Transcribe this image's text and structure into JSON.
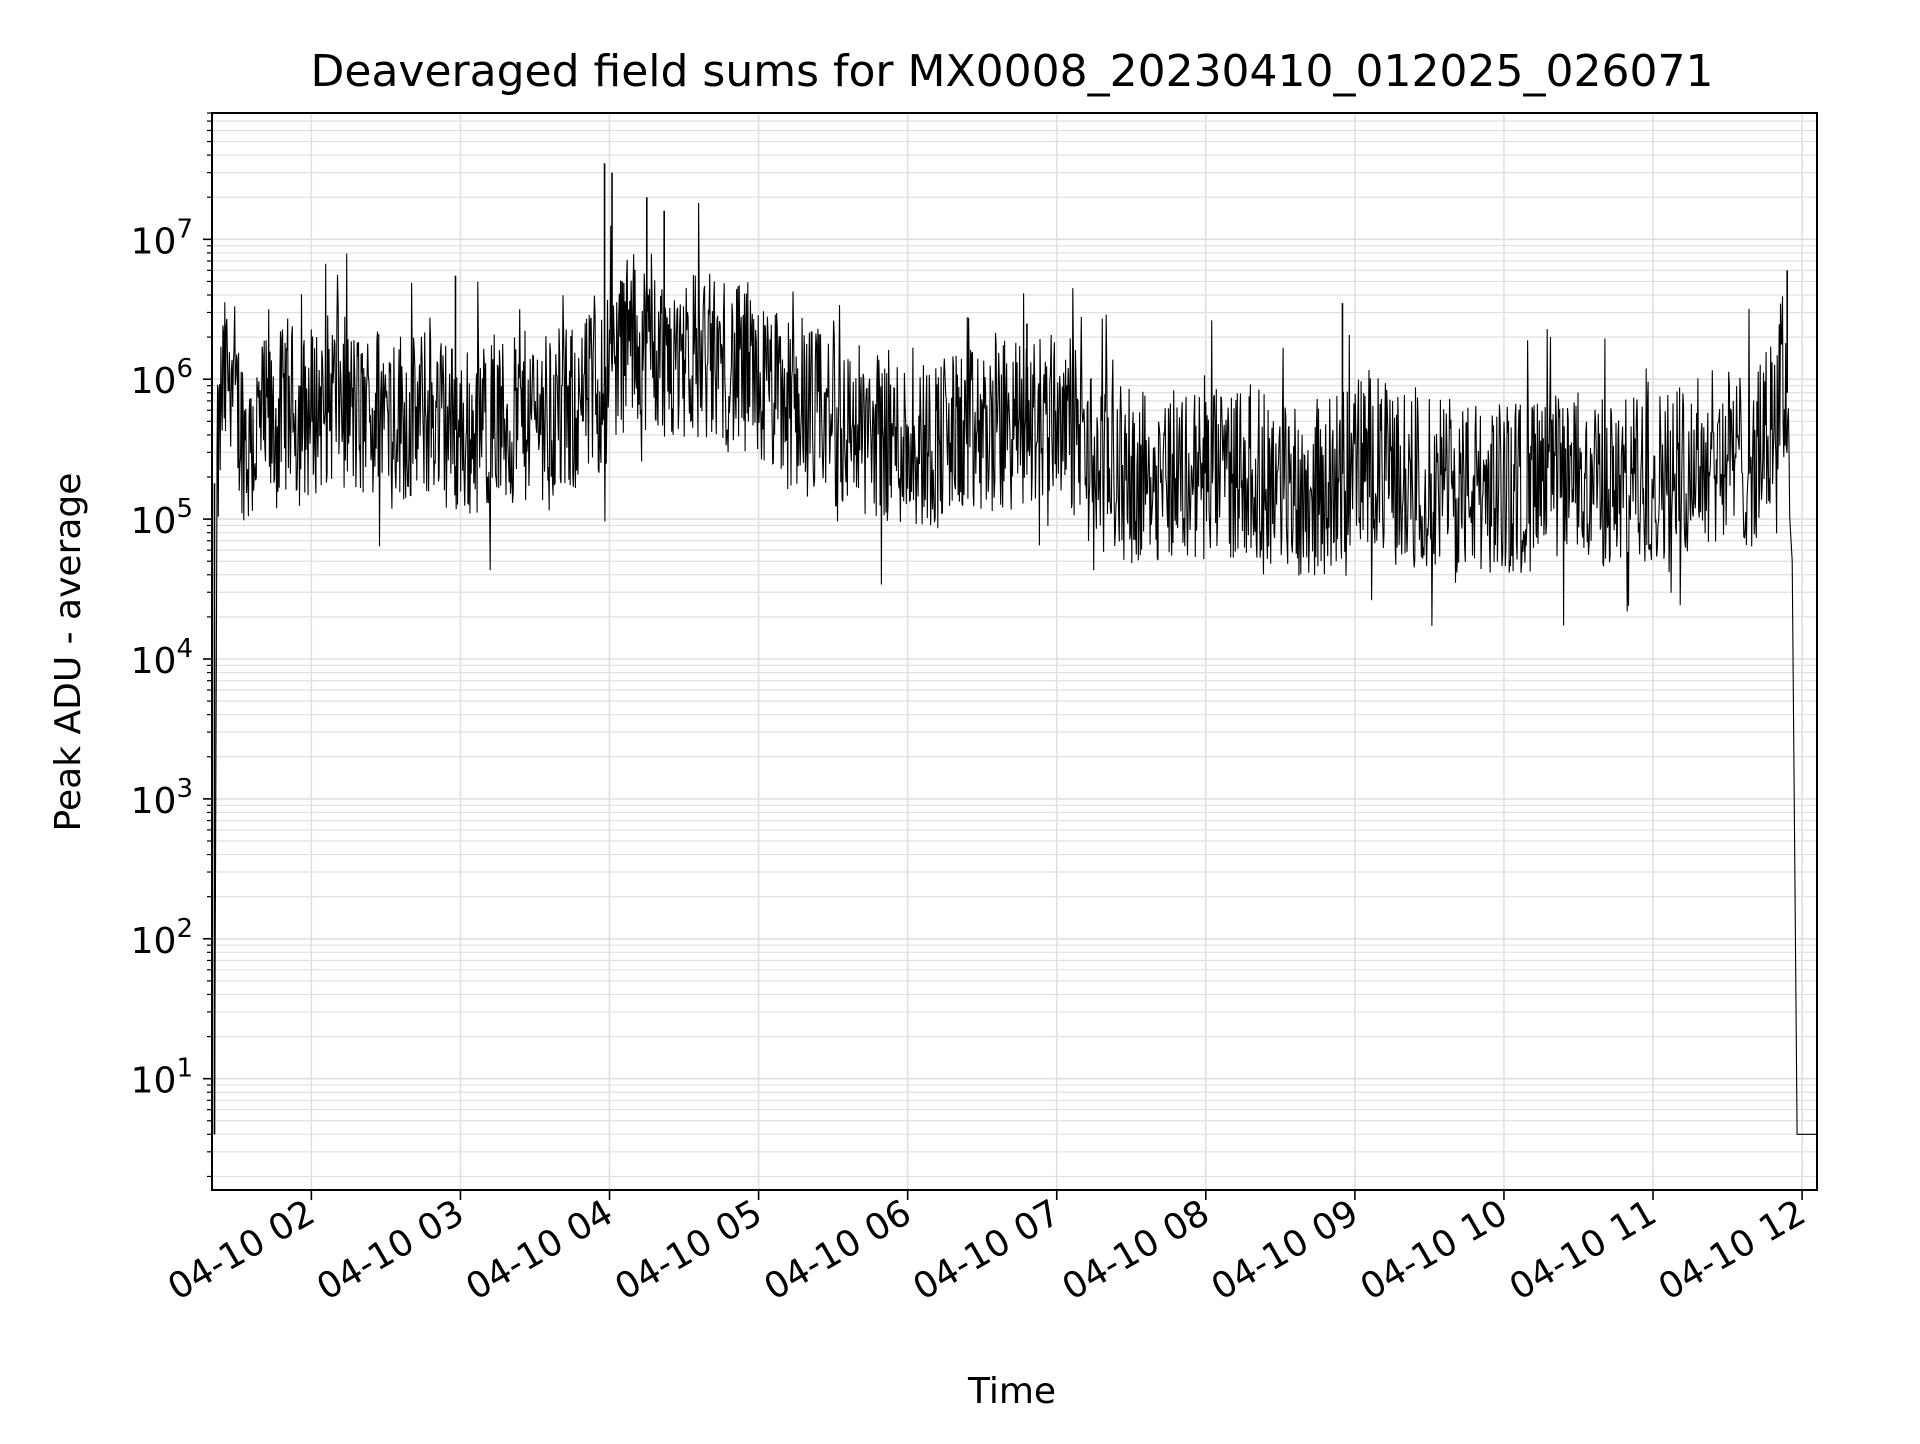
{
  "chart_data": {
    "type": "line",
    "title": "Deaveraged field sums for MX0008_20230410_012025_026071",
    "xlabel": "Time",
    "ylabel": "Peak ADU - average",
    "yscale": "log",
    "ylim": [
      1.6,
      80000000
    ],
    "xlim": [
      "2023-04-10 01:20",
      "2023-04-10 12:06"
    ],
    "grid": "on, major and minor",
    "x_tick_labels": [
      "04-10 02",
      "04-10 03",
      "04-10 04",
      "04-10 05",
      "04-10 06",
      "04-10 07",
      "04-10 08",
      "04-10 09",
      "04-10 10",
      "04-10 11",
      "04-10 12"
    ],
    "y_tick_labels": [
      {
        "base": "10",
        "exp": "1",
        "value": 10
      },
      {
        "base": "10",
        "exp": "2",
        "value": 100
      },
      {
        "base": "10",
        "exp": "3",
        "value": 1000
      },
      {
        "base": "10",
        "exp": "4",
        "value": 10000
      },
      {
        "base": "10",
        "exp": "5",
        "value": 100000
      },
      {
        "base": "10",
        "exp": "6",
        "value": 1000000
      },
      {
        "base": "10",
        "exp": "7",
        "value": 10000000
      }
    ],
    "line_color": "#000000",
    "series": [
      {
        "x": [
          "2023-04-10 01:21",
          "2023-04-10 01:22",
          "2023-04-10 01:24",
          "2023-04-10 01:26",
          "2023-04-10 01:28",
          "2023-04-10 01:30",
          "2023-04-10 01:35",
          "2023-04-10 01:40",
          "2023-04-10 01:45",
          "2023-04-10 01:50",
          "2023-04-10 01:55",
          "2023-04-10 02:00",
          "2023-04-10 02:10",
          "2023-04-10 02:20",
          "2023-04-10 02:30",
          "2023-04-10 02:40",
          "2023-04-10 02:50",
          "2023-04-10 03:00",
          "2023-04-10 03:10",
          "2023-04-10 03:20",
          "2023-04-10 03:30",
          "2023-04-10 03:40",
          "2023-04-10 03:50",
          "2023-04-10 03:58",
          "2023-04-10 04:00",
          "2023-04-10 04:03",
          "2023-04-10 04:10",
          "2023-04-10 04:15",
          "2023-04-10 04:20",
          "2023-04-10 04:30",
          "2023-04-10 04:40",
          "2023-04-10 04:50",
          "2023-04-10 05:00",
          "2023-04-10 05:10",
          "2023-04-10 05:20",
          "2023-04-10 05:30",
          "2023-04-10 05:40",
          "2023-04-10 05:50",
          "2023-04-10 06:00",
          "2023-04-10 06:10",
          "2023-04-10 06:20",
          "2023-04-10 06:30",
          "2023-04-10 06:40",
          "2023-04-10 06:50",
          "2023-04-10 07:00",
          "2023-04-10 07:05",
          "2023-04-10 07:15",
          "2023-04-10 07:30",
          "2023-04-10 07:45",
          "2023-04-10 08:00",
          "2023-04-10 08:15",
          "2023-04-10 08:30",
          "2023-04-10 08:45",
          "2023-04-10 09:00",
          "2023-04-10 09:05",
          "2023-04-10 09:15",
          "2023-04-10 09:30",
          "2023-04-10 09:45",
          "2023-04-10 10:00",
          "2023-04-10 10:15",
          "2023-04-10 10:30",
          "2023-04-10 10:45",
          "2023-04-10 11:00",
          "2023-04-10 11:15",
          "2023-04-10 11:30",
          "2023-04-10 11:40",
          "2023-04-10 11:45",
          "2023-04-10 11:48",
          "2023-04-10 11:50",
          "2023-04-10 11:52",
          "2023-04-10 11:54",
          "2023-04-10 11:55",
          "2023-04-10 11:56",
          "2023-04-10 11:58",
          "2023-04-10 12:00",
          "2023-04-10 12:03",
          "2023-04-10 12:06"
        ],
        "y": [
          4,
          180000,
          800000,
          1000000,
          1500000,
          600000,
          300000,
          500000,
          400000,
          700000,
          500000,
          600000,
          800000,
          500000,
          700000,
          500000,
          600000,
          400000,
          500000,
          450000,
          600000,
          500000,
          700000,
          900000,
          1200000,
          1500000,
          2000000,
          1800000,
          1500000,
          1600000,
          1400000,
          1200000,
          900000,
          700000,
          600000,
          500000,
          450000,
          400000,
          350000,
          350000,
          400000,
          400000,
          450000,
          500000,
          600000,
          500000,
          250000,
          200000,
          220000,
          200000,
          230000,
          180000,
          150000,
          250000,
          300000,
          200000,
          180000,
          170000,
          160000,
          180000,
          200000,
          170000,
          200000,
          250000,
          300000,
          250000,
          350000,
          500000,
          700000,
          1000000,
          800000,
          300000,
          50000,
          4,
          4,
          4,
          4
        ]
      }
    ],
    "spikes": [
      {
        "x": "2023-04-10 01:21",
        "y": 180000
      },
      {
        "x": "2023-04-10 02:58",
        "y": 5500000
      },
      {
        "x": "2023-04-10 03:58",
        "y": 35000000
      },
      {
        "x": "2023-04-10 04:01",
        "y": 30000000
      },
      {
        "x": "2023-04-10 04:15",
        "y": 20000000
      },
      {
        "x": "2023-04-10 04:22",
        "y": 16000000
      },
      {
        "x": "2023-04-10 06:48",
        "y": 2500000
      },
      {
        "x": "2023-04-10 08:55",
        "y": 3500000
      },
      {
        "x": "2023-04-10 11:54",
        "y": 6000000
      }
    ]
  }
}
